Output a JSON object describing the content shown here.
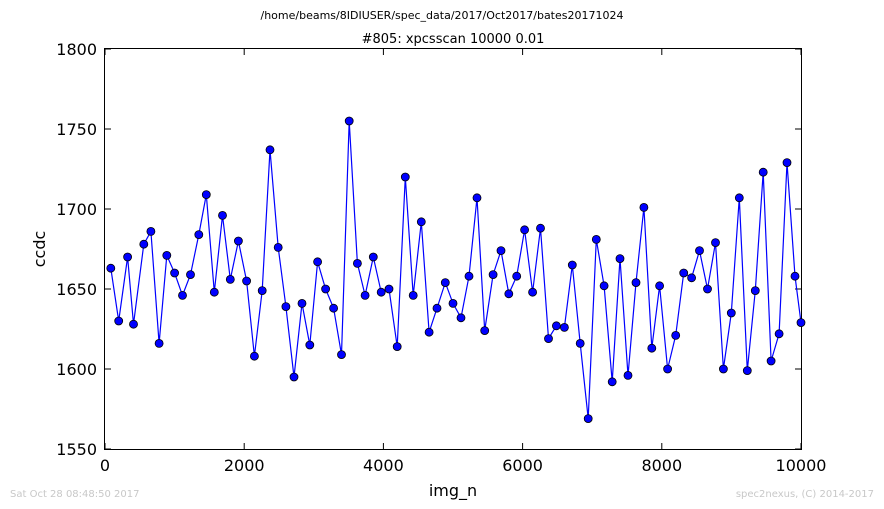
{
  "header": {
    "path": "/home/beams/8IDIUSER/spec_data/2017/Oct2017/bates20171024"
  },
  "footer": {
    "timestamp": "Sat Oct 28 08:48:50 2017",
    "credit": "spec2nexus, (C) 2014-2017"
  },
  "colors": {
    "series": "#0000ff",
    "marker_fill": "#0000ff",
    "text": "#000000",
    "footer_text": "#c8c8c8"
  },
  "chart_data": {
    "type": "line",
    "title": "#805: xpcsscan 10000 0.01",
    "xlabel": "img_n",
    "ylabel": "ccdc",
    "xlim": [
      0,
      10000
    ],
    "ylim": [
      1550,
      1800
    ],
    "xticks": [
      0,
      2000,
      4000,
      6000,
      8000,
      10000
    ],
    "yticks": [
      1550,
      1600,
      1650,
      1700,
      1750,
      1800
    ],
    "grid": false,
    "marker": "circle",
    "series": [
      {
        "x": [
          84,
          197,
          325,
          410,
          557,
          660,
          777,
          888,
          1000,
          1114,
          1228,
          1347,
          1456,
          1571,
          1688,
          1801,
          1917,
          2034,
          2147,
          2258,
          2371,
          2488,
          2599,
          2716,
          2831,
          2943,
          3055,
          3170,
          3285,
          3398,
          3508,
          3626,
          3737,
          3855,
          3968,
          4081,
          4198,
          4314,
          4428,
          4544,
          4657,
          4770,
          4889,
          5000,
          5115,
          5230,
          5345,
          5456,
          5576,
          5689,
          5802,
          5915,
          6029,
          6143,
          6257,
          6372,
          6485,
          6600,
          6714,
          6827,
          6943,
          7059,
          7171,
          7287,
          7400,
          7514,
          7629,
          7743,
          7857,
          7968,
          8083,
          8199,
          8314,
          8428,
          8542,
          8657,
          8771,
          8885,
          8998,
          9114,
          9228,
          9343,
          9457,
          9571,
          9686,
          9799,
          9914,
          10000
        ],
        "y": [
          1663,
          1630,
          1670,
          1628,
          1678,
          1686,
          1616,
          1671,
          1660,
          1646,
          1659,
          1684,
          1709,
          1648,
          1696,
          1656,
          1680,
          1655,
          1608,
          1649,
          1737,
          1676,
          1639,
          1595,
          1641,
          1615,
          1667,
          1650,
          1638,
          1609,
          1755,
          1666,
          1646,
          1670,
          1648,
          1650,
          1614,
          1720,
          1646,
          1692,
          1623,
          1638,
          1654,
          1641,
          1632,
          1658,
          1707,
          1624,
          1659,
          1674,
          1647,
          1658,
          1687,
          1648,
          1688,
          1619,
          1627,
          1626,
          1665,
          1616,
          1569,
          1681,
          1652,
          1592,
          1669,
          1596,
          1654,
          1701,
          1613,
          1652,
          1600,
          1621,
          1660,
          1657,
          1674,
          1650,
          1679,
          1600,
          1635,
          1707,
          1599,
          1649,
          1723,
          1605,
          1622,
          1729,
          1658,
          1629
        ]
      }
    ]
  }
}
